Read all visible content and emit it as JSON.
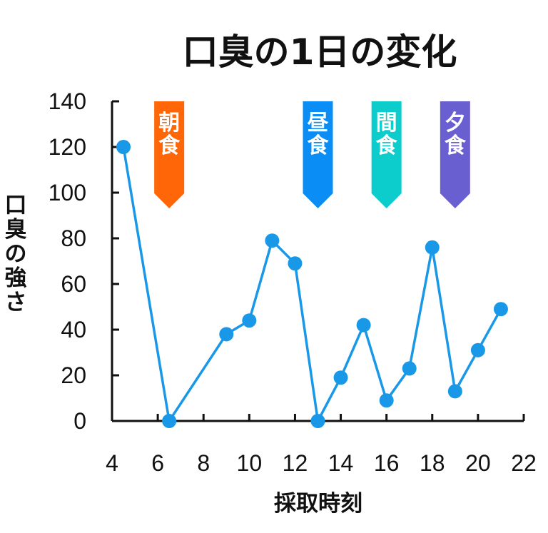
{
  "chart_data": {
    "type": "line",
    "title": "口臭の1日の変化",
    "xlabel": "採取時刻",
    "ylabel": "口臭の強さ",
    "xlim": [
      4,
      22
    ],
    "ylim": [
      0,
      140
    ],
    "xticks": [
      4,
      6,
      8,
      10,
      12,
      14,
      16,
      18,
      20,
      22
    ],
    "yticks": [
      0,
      20,
      40,
      60,
      80,
      100,
      120,
      140
    ],
    "grid": false,
    "series": [
      {
        "color": "#1a98e8",
        "x": [
          4.5,
          6.5,
          9,
          10,
          11,
          12,
          13,
          14,
          15,
          16,
          17,
          18,
          19,
          20,
          21
        ],
        "y": [
          120,
          0,
          38,
          44,
          79,
          69,
          0,
          19,
          42,
          9,
          23,
          76,
          13,
          31,
          49
        ]
      }
    ],
    "meals": [
      {
        "label": "朝食",
        "x": 6.5,
        "color": "#ff6608"
      },
      {
        "label": "昼食",
        "x": 13,
        "color": "#0a8ef5"
      },
      {
        "label": "間食",
        "x": 16,
        "color": "#0ccccc"
      },
      {
        "label": "夕食",
        "x": 19,
        "color": "#6a5fd0"
      }
    ]
  }
}
